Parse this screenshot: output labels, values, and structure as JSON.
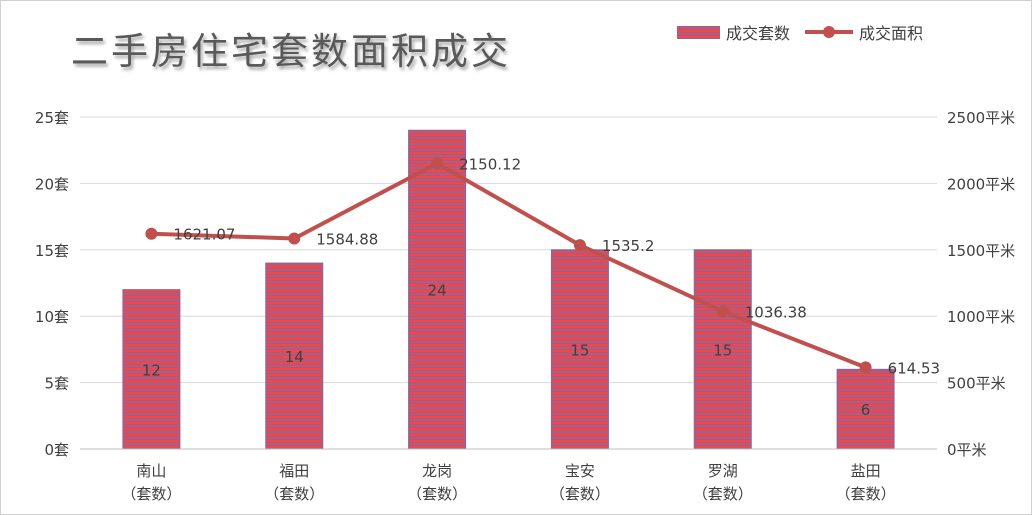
{
  "chart_data": {
    "type": "bar",
    "title": "二手房住宅套数面积成交",
    "categories": [
      "南山\n（套数）",
      "福田\n（套数）",
      "龙岗\n（套数）",
      "宝安\n（套数）",
      "罗湖\n（套数）",
      "盐田\n（套数）"
    ],
    "series": [
      {
        "name": "成交套数",
        "type": "bar",
        "axis": "left",
        "values": [
          12,
          14,
          24,
          15,
          15,
          6
        ],
        "data_labels": [
          "12",
          "14",
          "24",
          "15",
          "15",
          "6"
        ]
      },
      {
        "name": "成交面积",
        "type": "line",
        "axis": "right",
        "values": [
          1621.07,
          1584.88,
          2150.12,
          1535.2,
          1036.38,
          614.53
        ],
        "data_labels": [
          "1621.07",
          "1584.88",
          "2150.12",
          "1535.2",
          "1036.38",
          "614.53"
        ]
      }
    ],
    "y_left": {
      "ylim": [
        0,
        25
      ],
      "ticks": [
        "0套",
        "5套",
        "10套",
        "15套",
        "20套",
        "25套"
      ],
      "tick_values": [
        0,
        5,
        10,
        15,
        20,
        25
      ]
    },
    "y_right": {
      "ylim": [
        0,
        2500
      ],
      "ticks": [
        "0平米",
        "500平米",
        "1000平米",
        "1500平米",
        "2000平米",
        "2500平米"
      ],
      "tick_values": [
        0,
        500,
        1000,
        1500,
        2000,
        2500
      ]
    },
    "grid": true,
    "legend_position": "top-right",
    "colors": {
      "bar_stripe_a": "#8068a8",
      "bar_stripe_b": "#f04848",
      "line": "#c0504d",
      "grid": "#d9d9d9",
      "text": "#404040"
    }
  }
}
